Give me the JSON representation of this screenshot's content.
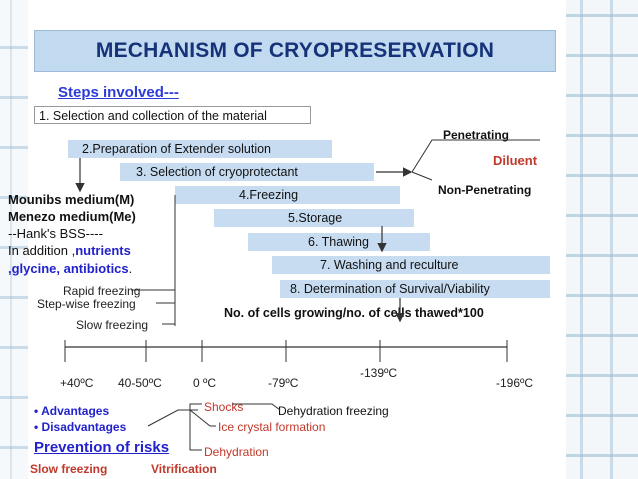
{
  "title": "MECHANISM OF CRYOPRESERVATION",
  "steps_label": "Steps involved---",
  "steps": [
    "1. Selection and collection of the material",
    "2.Preparation of Extender solution",
    "3. Selection of cryoprotectant",
    "4.Freezing",
    "5.Storage",
    "6. Thawing",
    "7. Washing and reculture",
    "8. Determination of Survival/Viability"
  ],
  "cryoprotectant_types": {
    "penetrating": "Penetrating",
    "diluent": "Diluent",
    "non_penetrating": "Non-Penetrating"
  },
  "media": {
    "line1": "Mounibs medium(M)",
    "line2": "Menezo medium(Me)",
    "line3": "--Hank's BSS----",
    "line4_prefix": "In addition ,",
    "line4_highlight": "nutrients",
    "line5_highlight": ",glycine, antibiotics",
    "line5_suffix": "."
  },
  "freezing_types": [
    "Rapid freezing",
    "Step-wise freezing",
    "Slow freezing"
  ],
  "formula": "No. of cells growing/no. of cells thawed*100",
  "temperatures": [
    "+40ºC",
    "40-50ºC",
    "0 ºC",
    "-79ºC",
    "-139ºC",
    "-196ºC"
  ],
  "bullets": [
    "Advantages",
    "Disadvantages"
  ],
  "risks": {
    "shocks": "Shocks",
    "dehydration_freezing": "Dehydration freezing",
    "ice": "Ice crystal formation",
    "dehydration": "Dehydration"
  },
  "prevention": "Prevention of risks",
  "methods": [
    "Slow freezing",
    "Vitrification"
  ],
  "colors": {
    "title_bg": "#c2daf0",
    "title_text": "#16337a",
    "step_bg": "#c7dcf1",
    "accent_blue": "#2d3bd8",
    "accent_red": "#c0392b"
  }
}
